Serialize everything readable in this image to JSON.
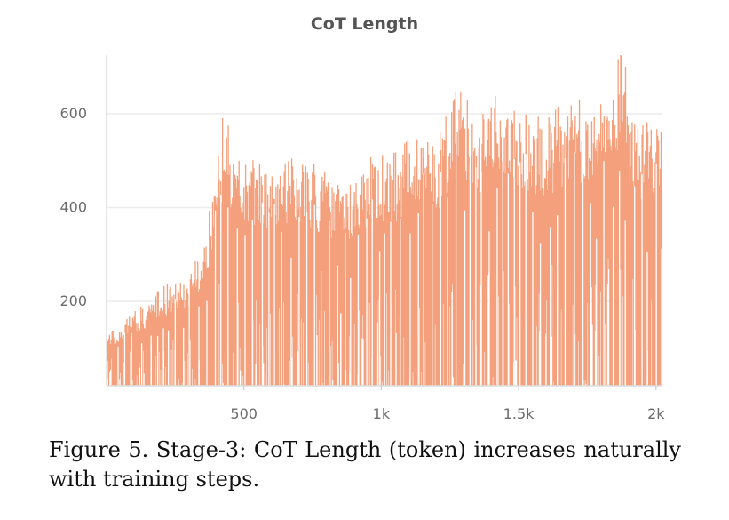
{
  "chart_data": {
    "type": "area",
    "title": "CoT Length",
    "xlabel": "",
    "ylabel": "",
    "xlim": [
      0,
      2020
    ],
    "ylim": [
      20,
      725
    ],
    "x_ticks": [
      {
        "value": 500,
        "label": "500"
      },
      {
        "value": 1000,
        "label": "1k"
      },
      {
        "value": 1500,
        "label": "1.5k"
      },
      {
        "value": 2000,
        "label": "2k"
      }
    ],
    "y_ticks": [
      {
        "value": 200,
        "label": "200"
      },
      {
        "value": 400,
        "label": "400"
      },
      {
        "value": 600,
        "label": "600"
      }
    ],
    "grid": "horizontal",
    "color": "#f4a07c",
    "series": [
      {
        "x": [
          0,
          50,
          100,
          150,
          200,
          250,
          300,
          350,
          400,
          430,
          450,
          500,
          550,
          600,
          650,
          700,
          750,
          800,
          850,
          900,
          950,
          1000,
          1050,
          1100,
          1150,
          1200,
          1250,
          1280,
          1300,
          1350,
          1400,
          1450,
          1500,
          1550,
          1600,
          1650,
          1700,
          1750,
          1800,
          1850,
          1870,
          1900,
          1950,
          2000,
          2020
        ],
        "y": [
          120,
          130,
          155,
          175,
          200,
          215,
          225,
          280,
          420,
          560,
          450,
          445,
          430,
          420,
          430,
          450,
          430,
          410,
          400,
          405,
          440,
          445,
          450,
          475,
          500,
          470,
          540,
          610,
          560,
          500,
          560,
          540,
          520,
          520,
          510,
          540,
          560,
          530,
          540,
          580,
          700,
          540,
          500,
          520,
          500
        ]
      }
    ]
  },
  "caption": "Figure 5. Stage-3: CoT Length (token) increases naturally with training steps."
}
